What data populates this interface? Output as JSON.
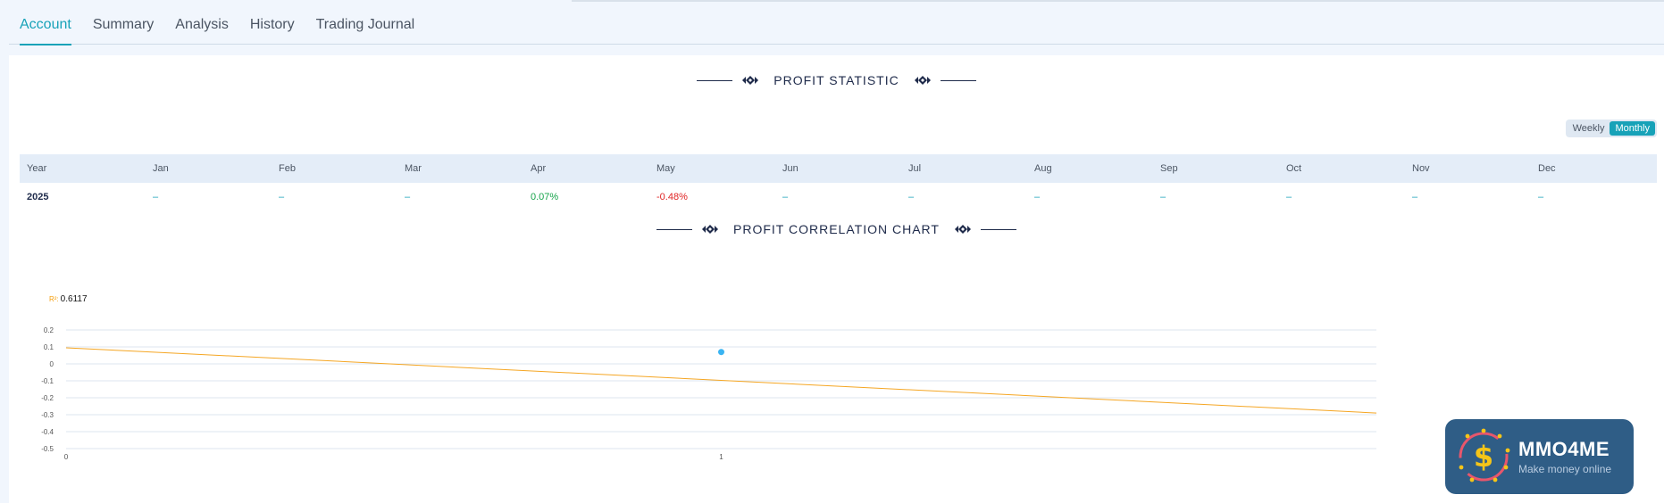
{
  "tabs": [
    {
      "label": "Account",
      "active": true
    },
    {
      "label": "Summary",
      "active": false
    },
    {
      "label": "Analysis",
      "active": false
    },
    {
      "label": "History",
      "active": false
    },
    {
      "label": "Trading Journal",
      "active": false
    }
  ],
  "profit_statistic": {
    "title": "PROFIT STATISTIC",
    "toggle": {
      "weekly": "Weekly",
      "monthly": "Monthly",
      "selected": "Monthly"
    },
    "columns": [
      "Year",
      "Jan",
      "Feb",
      "Mar",
      "Apr",
      "May",
      "Jun",
      "Jul",
      "Aug",
      "Sep",
      "Oct",
      "Nov",
      "Dec"
    ],
    "rows": [
      {
        "year": "2025",
        "values": [
          "–",
          "–",
          "–",
          "0.07%",
          "-0.48%",
          "–",
          "–",
          "–",
          "–",
          "–",
          "–",
          "–"
        ]
      }
    ]
  },
  "correlation": {
    "title": "PROFIT CORRELATION CHART",
    "r2_label": "R²:",
    "r2_value": "0.6117"
  },
  "chart_data": {
    "type": "scatter",
    "title": "PROFIT CORRELATION CHART",
    "xlabel": "",
    "ylabel": "",
    "x_ticks": [
      "0",
      "1"
    ],
    "y_ticks": [
      "0.2",
      "0.1",
      "0",
      "-0.1",
      "-0.2",
      "-0.3",
      "-0.4",
      "-0.5"
    ],
    "xlim": [
      0,
      2
    ],
    "ylim": [
      -0.5,
      0.2
    ],
    "points": [
      {
        "x": 1,
        "y": 0.07
      }
    ],
    "trendline": {
      "x": [
        0,
        2
      ],
      "y": [
        0.095,
        -0.29
      ]
    },
    "grid": true,
    "colors": {
      "point": "#3ab4f2",
      "trendline": "#f5a623",
      "grid": "#dde6ef"
    }
  },
  "watermark": {
    "brand": "MMO4ME",
    "slogan": "Make money online"
  },
  "colors": {
    "accent": "#17a2b8",
    "positive": "#16a34a",
    "negative": "#e02424",
    "title": "#1e2a4a"
  }
}
